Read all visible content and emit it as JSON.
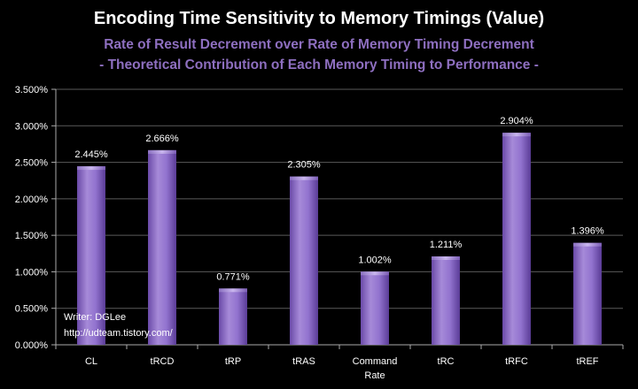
{
  "chart_data": {
    "type": "bar",
    "title": "Encoding Time Sensitivity to Memory Timings (Value)",
    "subtitles": [
      "Rate of Result Decrement over Rate of Memory Timing Decrement",
      "- Theoretical Contribution of Each Memory Timing to Performance -"
    ],
    "categories": [
      [
        "CL"
      ],
      [
        "tRCD"
      ],
      [
        "tRP"
      ],
      [
        "tRAS"
      ],
      [
        "Command",
        "Rate"
      ],
      [
        "tRC"
      ],
      [
        "tRFC"
      ],
      [
        "tREF"
      ]
    ],
    "values": [
      2.445,
      2.666,
      0.771,
      2.305,
      1.002,
      1.211,
      2.904,
      1.396
    ],
    "data_labels": [
      "2.445%",
      "2.666%",
      "0.771%",
      "2.305%",
      "1.002%",
      "1.211%",
      "2.904%",
      "1.396%"
    ],
    "ylim": [
      0,
      3.5
    ],
    "yticks": [
      "0.000%",
      "0.500%",
      "1.000%",
      "1.500%",
      "2.000%",
      "2.500%",
      "3.000%",
      "3.500%"
    ],
    "grid": true,
    "legend": "none",
    "bar_color": "#8a6cc8"
  },
  "notes": {
    "writer": "Writer: DGLee",
    "url": "http://udteam.tistory.com/"
  }
}
